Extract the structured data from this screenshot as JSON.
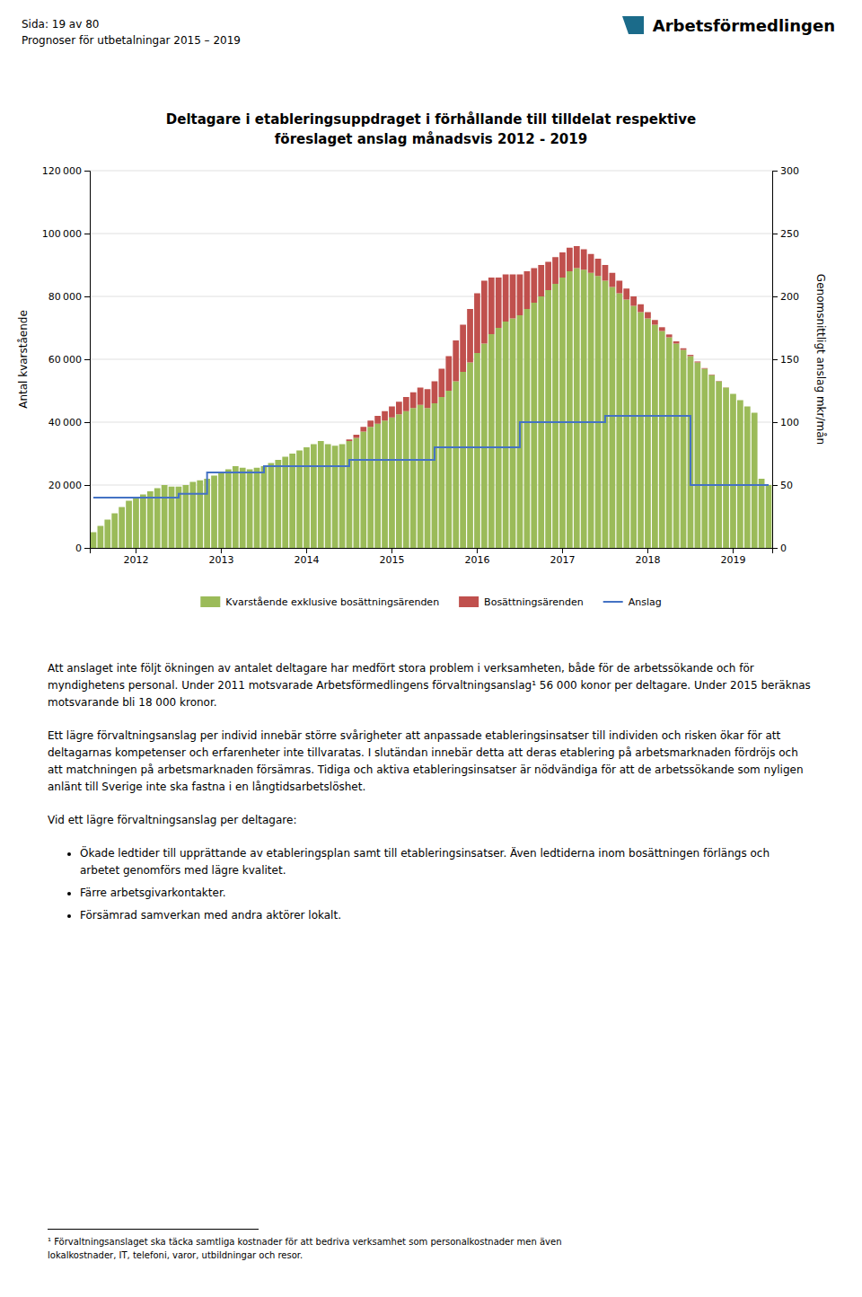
{
  "chart_data": {
    "type": "bar",
    "title": "Deltagare i etableringsuppdraget i förhållande till tilldelat respektive",
    "subtitle": "föreslaget anslag månadsvis 2012 - 2019",
    "ylabel": "Antal kvarstående",
    "y2label": "Genomsnittligt anslag mkr/mån",
    "categories": [
      null,
      null,
      null,
      null,
      null,
      null,
      "2012",
      null,
      null,
      null,
      null,
      null,
      null,
      null,
      null,
      null,
      null,
      null,
      "2013",
      null,
      null,
      null,
      null,
      null,
      null,
      null,
      null,
      null,
      null,
      null,
      "2014",
      null,
      null,
      null,
      null,
      null,
      null,
      null,
      null,
      null,
      null,
      null,
      "2015",
      null,
      null,
      null,
      null,
      null,
      null,
      null,
      null,
      null,
      null,
      null,
      "2016",
      null,
      null,
      null,
      null,
      null,
      null,
      null,
      null,
      null,
      null,
      null,
      "2017",
      null,
      null,
      null,
      null,
      null,
      null,
      null,
      null,
      null,
      null,
      null,
      "2018",
      null,
      null,
      null,
      null,
      null,
      null,
      null,
      null,
      null,
      null,
      null,
      "2019",
      null,
      null,
      null,
      null,
      null
    ],
    "series": [
      {
        "name": "Kvarstående exklusive bosättningsärenden",
        "type": "bar",
        "color": "#9BBB59",
        "values": [
          5000,
          7000,
          9000,
          11000,
          13000,
          15000,
          16000,
          17000,
          18000,
          19000,
          20000,
          19500,
          19500,
          20000,
          21000,
          21500,
          22000,
          23000,
          24000,
          25000,
          26000,
          25500,
          25000,
          25500,
          26000,
          27000,
          28000,
          29000,
          30000,
          31000,
          32000,
          33000,
          34000,
          33000,
          32500,
          33000,
          34000,
          35000,
          37000,
          38500,
          39500,
          40500,
          41500,
          42500,
          43500,
          44500,
          45500,
          44500,
          46000,
          48000,
          50000,
          53000,
          56000,
          59000,
          62000,
          65000,
          68000,
          70000,
          72000,
          73000,
          74000,
          76000,
          78000,
          80000,
          82000,
          84000,
          86000,
          88000,
          89000,
          88500,
          87500,
          86500,
          85000,
          83000,
          81000,
          79000,
          77000,
          75000,
          73000,
          71000,
          69000,
          67000,
          65000,
          63000,
          61000,
          59000,
          57000,
          55000,
          53000,
          51000,
          49000,
          47000,
          45000,
          43000,
          22000,
          20000
        ]
      },
      {
        "name": "Bosättningsärenden",
        "type": "bar",
        "color": "#C0504D",
        "values": [
          0,
          0,
          0,
          0,
          0,
          0,
          0,
          0,
          0,
          0,
          0,
          0,
          0,
          0,
          0,
          0,
          0,
          0,
          0,
          0,
          0,
          0,
          0,
          0,
          0,
          0,
          0,
          0,
          0,
          0,
          0,
          0,
          0,
          0,
          0,
          0,
          500,
          1000,
          1500,
          2000,
          2500,
          3000,
          3500,
          4000,
          4500,
          5000,
          5500,
          6000,
          7000,
          9000,
          11000,
          13000,
          15000,
          17000,
          19000,
          20000,
          18000,
          16000,
          15000,
          14000,
          13000,
          12000,
          11000,
          10000,
          9000,
          8500,
          8000,
          7500,
          7000,
          6500,
          6000,
          5500,
          5000,
          4500,
          4000,
          3500,
          3000,
          2500,
          2000,
          1500,
          1200,
          900,
          700,
          500,
          400,
          300,
          200,
          150,
          100,
          50,
          0,
          0,
          0,
          0,
          0,
          0
        ]
      },
      {
        "name": "Anslag",
        "type": "line",
        "axis": "y2",
        "color": "#4472C4",
        "line_style": "solid",
        "values": [
          40,
          40,
          40,
          40,
          40,
          40,
          40,
          40,
          40,
          40,
          40,
          40,
          43,
          43,
          43,
          43,
          60,
          60,
          60,
          60,
          60,
          60,
          60,
          60,
          65,
          65,
          65,
          65,
          65,
          65,
          65,
          65,
          65,
          65,
          65,
          65,
          70,
          70,
          70,
          70,
          70,
          70,
          70,
          70,
          70,
          70,
          70,
          70,
          80,
          80,
          80,
          80,
          80,
          80,
          80,
          80,
          80,
          80,
          80,
          80,
          100,
          100,
          100,
          100,
          100,
          100,
          100,
          100,
          100,
          100,
          100,
          100,
          105,
          105,
          105,
          105,
          105,
          105,
          105,
          105,
          105,
          105,
          105,
          105,
          50,
          50,
          50,
          50,
          50,
          50,
          50,
          50,
          50,
          50,
          50,
          50
        ]
      }
    ],
    "stacked": true,
    "ylim": [
      0,
      120000
    ],
    "yticks": [
      0,
      {
        "value": 20000,
        "label": "20 000"
      },
      {
        "value": 40000,
        "label": "40 000"
      },
      {
        "value": 60000,
        "label": "60 000"
      },
      {
        "value": 80000,
        "label": "80 000"
      },
      {
        "value": 100000,
        "label": "100 000"
      },
      {
        "value": 120000,
        "label": "120 000"
      }
    ],
    "y2lim": [
      0,
      300
    ],
    "y2ticks": [
      0,
      50,
      100,
      150,
      200,
      250,
      300
    ],
    "grid": true,
    "legend": "bottom"
  },
  "page": {
    "header": [
      "Sida: 19 av 80",
      "Prognoser för utbetalningar 2015 – 2019"
    ],
    "logo": "Arbetsförmedlingen",
    "paragraphs": [
      "Att anslaget inte följt ökningen av antalet deltagare har medfört stora problem i verksamheten, både för de arbetssökande och för myndighetens personal. Under 2011 motsvarade Arbetsförmedlingens förvaltningsanslag¹ 56 000 konor per deltagare. Under 2015 beräknas motsvarande bli 18 000 kronor.",
      "Ett lägre förvaltningsanslag per individ innebär större svårigheter att anpassade etableringsinsatser till individen och risken ökar för att deltagarnas kompetenser och erfarenheter inte tillvaratas. I slutändan innebär detta att deras etablering på arbetsmarknaden fördröjs och att matchningen på arbetsmarknaden försämras. Tidiga och aktiva etableringsinsatser är nödvändiga för att de arbetssökande som nyligen anlänt till Sverige inte ska fastna i en långtidsarbetslöshet.",
      "Vid ett lägre förvaltningsanslag per deltagare:"
    ],
    "bullets": [
      "Ökade ledtider till upprättande av etableringsplan samt till etableringsinsatser. Även ledtiderna inom bosättningen förlängs och arbetet genomförs med lägre kvalitet.",
      "Färre arbetsgivarkontakter.",
      "Försämrad samverkan med andra aktörer lokalt."
    ],
    "footnotes": [
      "¹ Förvaltningsanslaget ska täcka samtliga kostnader för att bedriva verksamhet som personalkostnader men även",
      "lokalkostnader, IT, telefoni, varor, utbildningar och resor."
    ]
  }
}
